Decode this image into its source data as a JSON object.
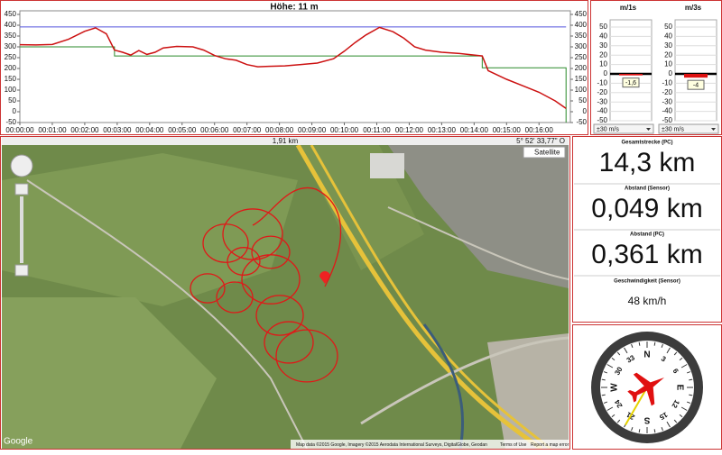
{
  "chart_data": [
    {
      "type": "line",
      "title": "Höhe: 11 m",
      "color": "#cc1111",
      "x": [
        0,
        30,
        60,
        90,
        120,
        140,
        160,
        175,
        190,
        205,
        220,
        235,
        250,
        265,
        290,
        320,
        340,
        360,
        380,
        400,
        420,
        440,
        460,
        490,
        520,
        550,
        580,
        600,
        620,
        640,
        665,
        690,
        710,
        730,
        750,
        780,
        810,
        840,
        855,
        866,
        900,
        930,
        960,
        990,
        1010
      ],
      "values": [
        310,
        309,
        311,
        335,
        372,
        388,
        360,
        285,
        275,
        262,
        283,
        265,
        275,
        295,
        302,
        300,
        285,
        260,
        245,
        238,
        218,
        208,
        210,
        212,
        218,
        225,
        245,
        280,
        320,
        355,
        390,
        370,
        340,
        300,
        285,
        275,
        270,
        262,
        258,
        190,
        150,
        120,
        90,
        50,
        15
      ],
      "guides": [
        {
          "color": "#5555dd",
          "x": [
            0,
            1010
          ],
          "values": [
            392,
            392
          ]
        },
        {
          "color": "#2a8a2a",
          "x": [
            0,
            175,
            175,
            855,
            855,
            1010,
            1010
          ],
          "values": [
            300,
            300,
            258,
            258,
            203,
            203,
            -50
          ]
        }
      ],
      "xlim": [
        0,
        1018
      ],
      "ylim": [
        -50,
        450
      ],
      "xticks": [
        {
          "value": 0,
          "label": "00:00:00"
        },
        {
          "value": 60,
          "label": "00:01:00"
        },
        {
          "value": 120,
          "label": "00:02:00"
        },
        {
          "value": 180,
          "label": "00:03:00"
        },
        {
          "value": 240,
          "label": "00:04:00"
        },
        {
          "value": 300,
          "label": "00:05:00"
        },
        {
          "value": 360,
          "label": "00:06:00"
        },
        {
          "value": 420,
          "label": "00:07:00"
        },
        {
          "value": 480,
          "label": "00:08:00"
        },
        {
          "value": 540,
          "label": "00:09:00"
        },
        {
          "value": 600,
          "label": "00:10:00"
        },
        {
          "value": 660,
          "label": "00:11:00"
        },
        {
          "value": 720,
          "label": "00:12:00"
        },
        {
          "value": 780,
          "label": "00:13:00"
        },
        {
          "value": 840,
          "label": "00:14:00"
        },
        {
          "value": 900,
          "label": "00:15:00"
        },
        {
          "value": 960,
          "label": "00:16:00"
        }
      ],
      "yticks": [
        -50,
        0,
        50,
        100,
        150,
        200,
        250,
        300,
        350,
        400,
        450
      ]
    },
    {
      "type": "bar",
      "title": "m/1s",
      "values": [
        -1.6
      ],
      "value_labels": [
        "-1,6"
      ],
      "color": "#dd1111",
      "ylim": [
        -50,
        50
      ],
      "yticks": [
        50,
        40,
        30,
        20,
        10,
        0,
        -10,
        -20,
        -30,
        -40,
        -50
      ],
      "selector": "±30 m/s"
    },
    {
      "type": "bar",
      "title": "m/3s",
      "values": [
        -4
      ],
      "value_labels": [
        "-4"
      ],
      "color": "#dd1111",
      "ylim": [
        -50,
        50
      ],
      "yticks": [
        50,
        40,
        30,
        20,
        10,
        0,
        -10,
        -20,
        -30,
        -40,
        -50
      ],
      "selector": "±30 m/s"
    }
  ],
  "map": {
    "scale": "1,91 km",
    "coordinate": "5° 52' 33,77\" O",
    "map_type": "Satellite",
    "logo": "Google",
    "attribution": "Map data ©2015 Google, Imagery ©2015 Aerodata International Surveys, DigitalGlobe, Geodan",
    "terms": "Terms of Use",
    "report": "Report a map error"
  },
  "stats": [
    {
      "label": "Gesamtstrecke (PC)",
      "value": "14,3 km"
    },
    {
      "label": "Abstand (Sensor)",
      "value": "0,049 km"
    },
    {
      "label": "Abstand (PC)",
      "value": "0,361 km"
    },
    {
      "label": "Geschwindigkeit (Sensor)",
      "value": "48 km/h"
    }
  ],
  "compass": {
    "labels": [
      "N",
      "3",
      "6",
      "E",
      "12",
      "15",
      "S",
      "21",
      "24",
      "W",
      "30",
      "33"
    ],
    "heading": 210
  }
}
